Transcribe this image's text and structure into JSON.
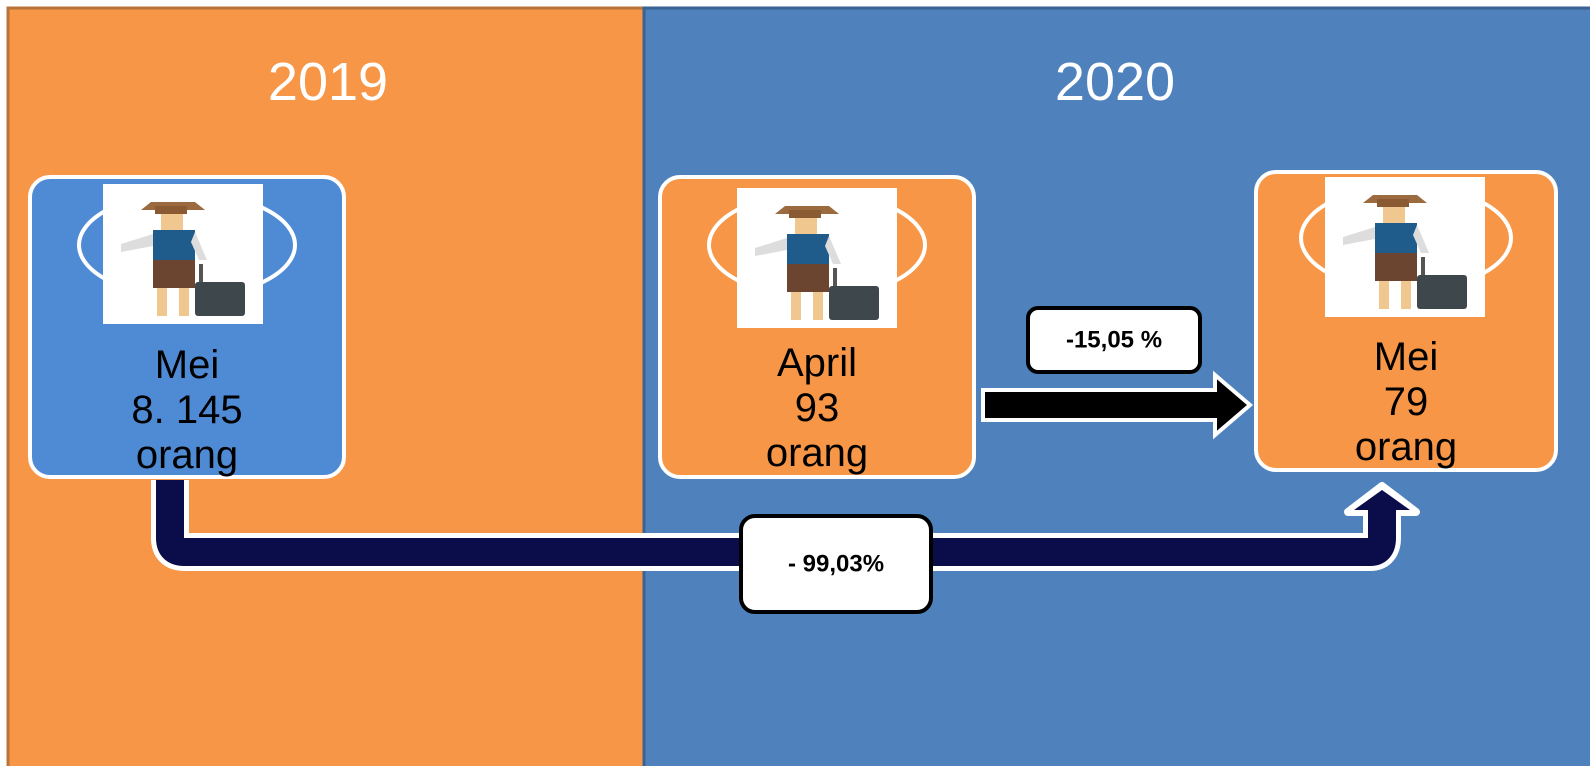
{
  "panels": [
    {
      "year": "2019"
    },
    {
      "year": "2020"
    }
  ],
  "cards": [
    {
      "month": "Mei",
      "value": "8. 145",
      "unit": "orang"
    },
    {
      "month": "April",
      "value": "93",
      "unit": "orang"
    },
    {
      "month": "Mei",
      "value": "79",
      "unit": "orang"
    }
  ],
  "changes": [
    {
      "label": "-15,05 %"
    },
    {
      "label": "- 99,03%"
    }
  ]
}
